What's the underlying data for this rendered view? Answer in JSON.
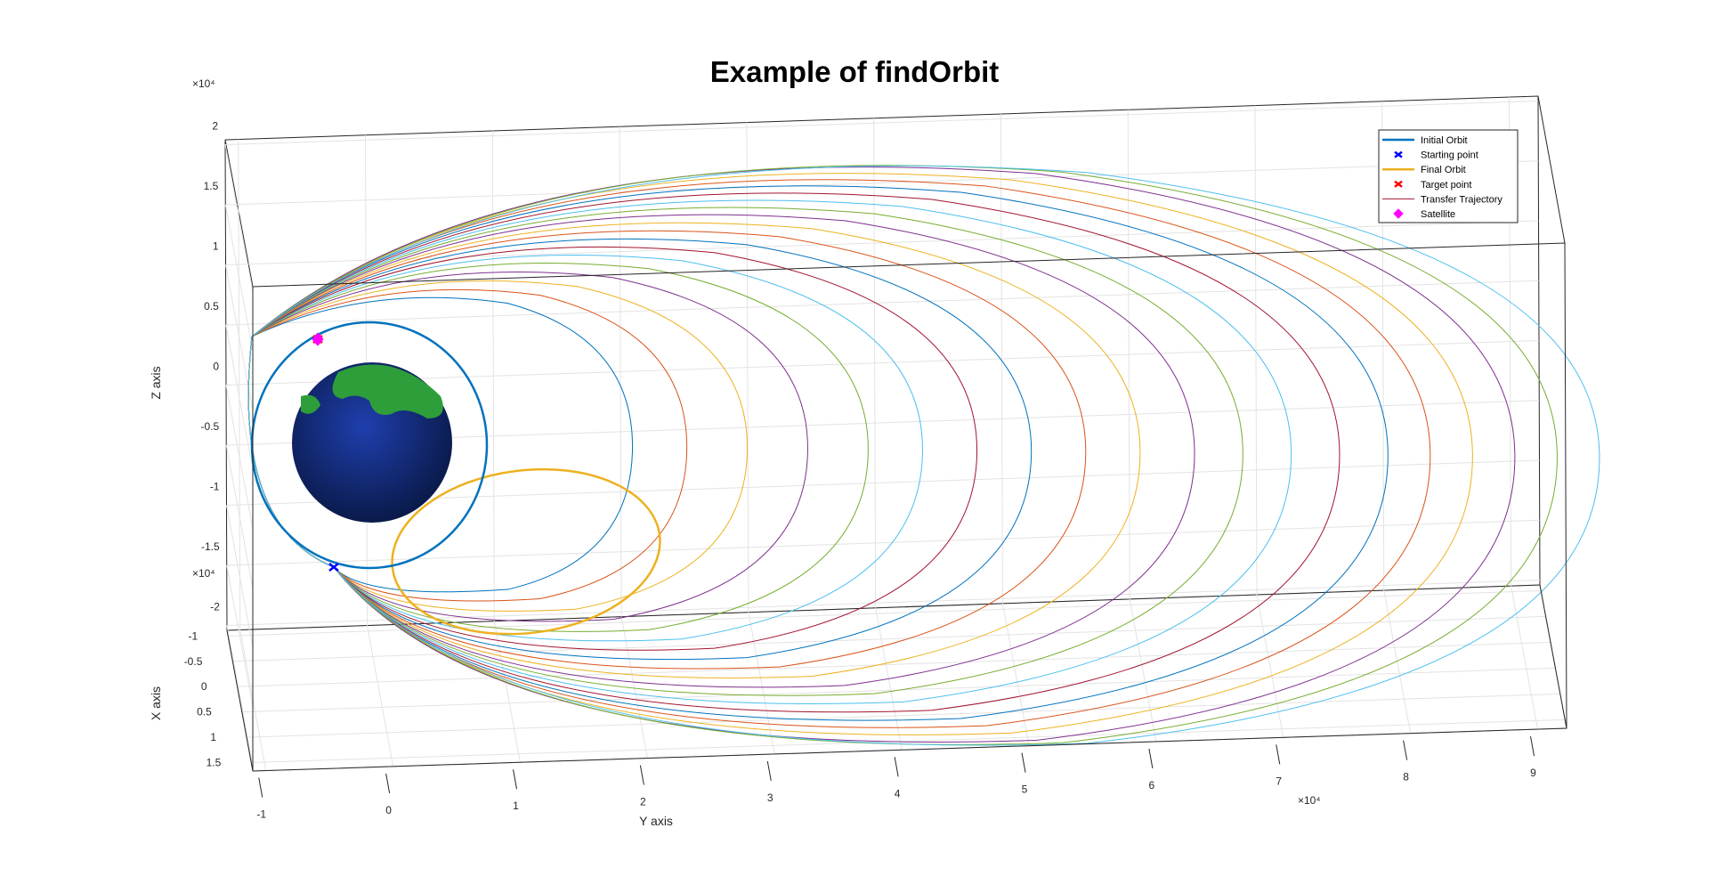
{
  "chart_data": {
    "type": "line",
    "title": "Example of findOrbit",
    "xlabel": "X axis",
    "ylabel": "Y axis",
    "zlabel": "Z axis",
    "y_ticks": [
      "-1",
      "0",
      "1",
      "2",
      "3",
      "4",
      "5",
      "6",
      "7",
      "8",
      "9"
    ],
    "z_ticks": [
      "2",
      "1.5",
      "1",
      "0.5",
      "0",
      "-0.5",
      "-1",
      "-1.5",
      "-2"
    ],
    "x_ticks": [
      "-1",
      "-0.5",
      "0",
      "0.5",
      "1",
      "1.5"
    ],
    "y_exponent": "×10⁴",
    "z_exponent": "×10⁴",
    "x_exponent": "×10⁴",
    "grid": true,
    "legend_position": "top-right",
    "legend": [
      {
        "label": "Initial Orbit",
        "style": "line",
        "color": "#0072BD"
      },
      {
        "label": "Starting point",
        "style": "x",
        "color": "#0000FF"
      },
      {
        "label": "Final Orbit",
        "style": "line",
        "color": "#EDB120"
      },
      {
        "label": "Target point",
        "style": "x",
        "color": "#FF0000"
      },
      {
        "label": "Transfer Trajectory",
        "style": "line",
        "color": "#A2142F"
      },
      {
        "label": "Satellite",
        "style": "diamond",
        "color": "#FF00FF"
      }
    ],
    "initial_orbit_radius": 10000,
    "final_orbit": {
      "y_min": -12000,
      "y_max": 11000,
      "z_min": -20000,
      "z_max": 1500
    },
    "transfer_trajectories_apogee_y": [
      12500,
      17000,
      22000,
      27000,
      32000,
      36500,
      41000,
      45500,
      50000,
      54500,
      59000,
      63000,
      67000,
      71000,
      75000,
      78500,
      82000,
      85500,
      89000,
      92500
    ],
    "trajectory_colors": [
      "#0072BD",
      "#D95319",
      "#EDB120",
      "#7E2F8E",
      "#77AC30",
      "#4DBEEE",
      "#A2142F"
    ],
    "earth_colors": [
      "#1f3fae",
      "#2e9e3a",
      "#0a1a4a"
    ]
  }
}
